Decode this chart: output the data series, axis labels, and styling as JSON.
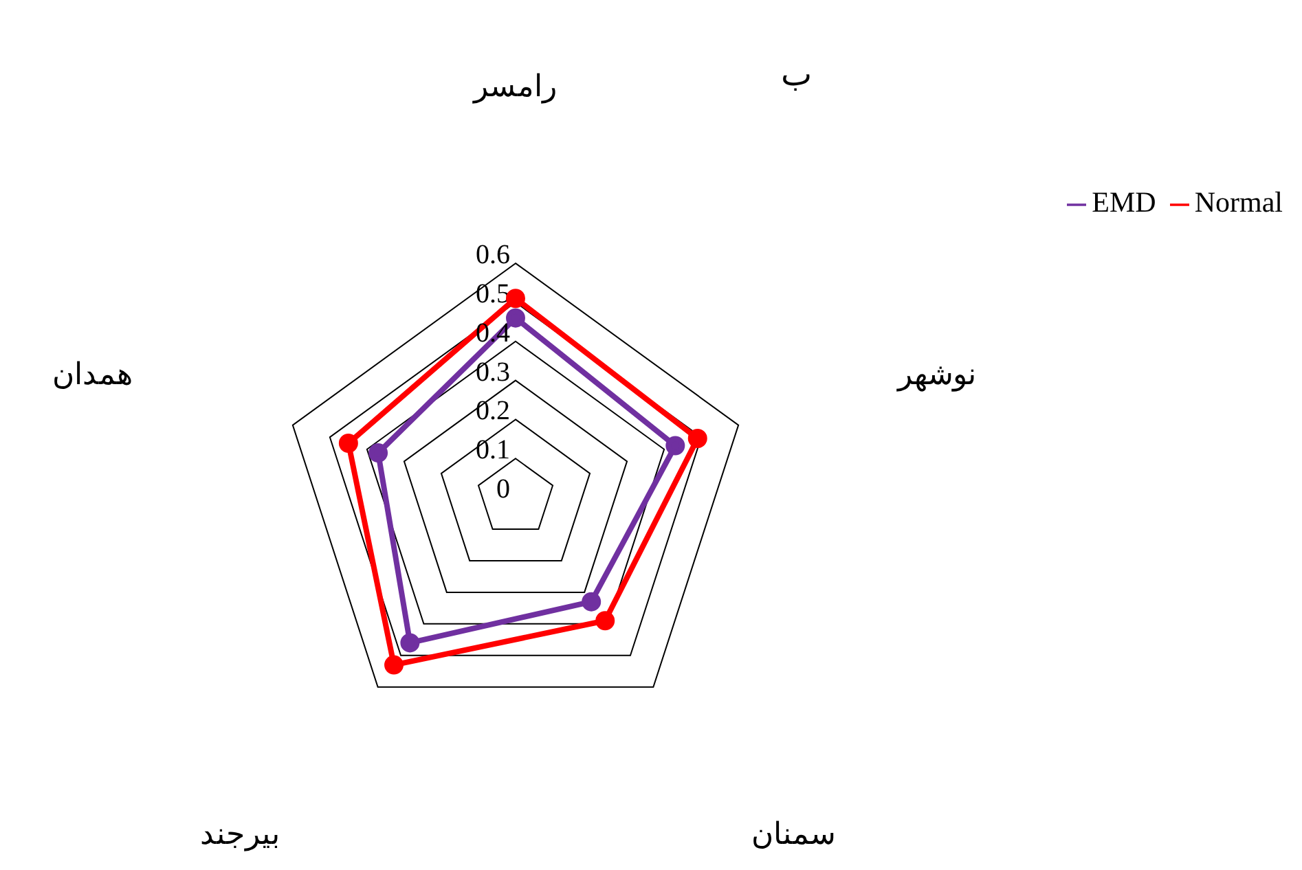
{
  "chart_data": {
    "type": "radar",
    "categories": [
      "رامسر",
      "نوشهر",
      "سمنان",
      "بیرجند",
      "همدان"
    ],
    "series": [
      {
        "name": "EMD",
        "color": "#7030a0",
        "values": [
          0.46,
          0.43,
          0.33,
          0.46,
          0.37
        ]
      },
      {
        "name": "Normal",
        "color": "#ff0000",
        "values": [
          0.51,
          0.49,
          0.39,
          0.53,
          0.45
        ]
      }
    ],
    "ylim": [
      0,
      0.6
    ],
    "yticks": [
      0,
      0.1,
      0.2,
      0.3,
      0.4,
      0.5,
      0.6
    ],
    "grid": true,
    "legend": "top right",
    "marker": "circle",
    "annotations": [
      "ب"
    ]
  }
}
